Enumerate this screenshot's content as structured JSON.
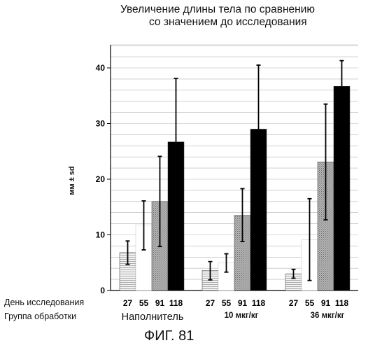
{
  "chart_data": {
    "type": "bar",
    "title_lines": [
      "Увеличение длины тела по сравнению",
      "со значением до исследования"
    ],
    "ylabel": "мм ± sd",
    "ylim": [
      0,
      45
    ],
    "yticks": [
      0,
      10,
      20,
      30,
      40
    ],
    "grid": true,
    "row_labels": [
      "День исследования",
      "Группа обработки"
    ],
    "day_labels": [
      "27",
      "55",
      "91",
      "118"
    ],
    "groups": [
      {
        "name": "Наполнитель",
        "bars": [
          {
            "day": "27",
            "value": 6.8,
            "low": 4.7,
            "high": 8.9
          },
          {
            "day": "55",
            "value": 11.8,
            "low": 7.3,
            "high": 16.1
          },
          {
            "day": "91",
            "value": 16.0,
            "low": 7.9,
            "high": 24.1
          },
          {
            "day": "118",
            "value": 26.7,
            "low": 26.7,
            "high": 38.1
          }
        ]
      },
      {
        "name": "10 мкг/кг",
        "bars": [
          {
            "day": "27",
            "value": 3.6,
            "low": 1.9,
            "high": 5.2
          },
          {
            "day": "55",
            "value": 5.0,
            "low": 3.3,
            "high": 6.6
          },
          {
            "day": "91",
            "value": 13.5,
            "low": 8.8,
            "high": 18.3
          },
          {
            "day": "118",
            "value": 29.0,
            "low": 29.0,
            "high": 40.5
          }
        ]
      },
      {
        "name": "36 мкг/кг",
        "bars": [
          {
            "day": "27",
            "value": 3.0,
            "low": 2.2,
            "high": 3.8
          },
          {
            "day": "55",
            "value": 9.1,
            "low": 1.8,
            "high": 16.5
          },
          {
            "day": "91",
            "value": 23.1,
            "low": 12.7,
            "high": 33.5
          },
          {
            "day": "118",
            "value": 36.7,
            "low": 36.7,
            "high": 41.3
          }
        ]
      }
    ],
    "series_fills": [
      "#e4e4e4",
      "#ffffff",
      "#a8a8a8",
      "#000000"
    ]
  },
  "figure_caption": "ФИГ. 81"
}
